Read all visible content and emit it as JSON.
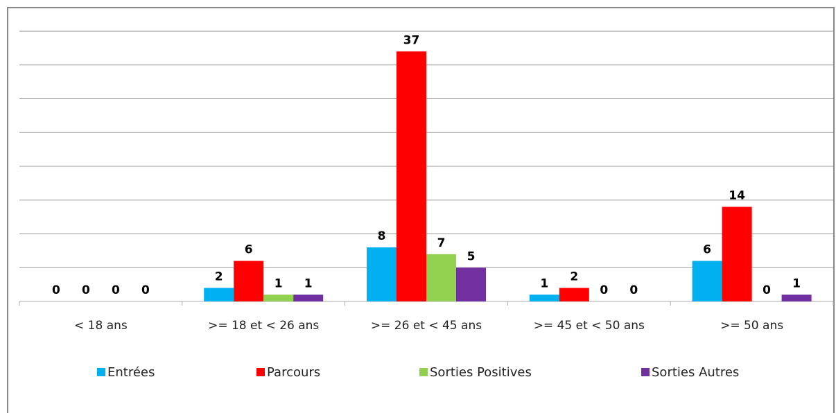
{
  "chart_data": {
    "type": "bar",
    "categories": [
      "< 18 ans",
      ">= 18 et < 26 ans",
      ">= 26 et < 45 ans",
      ">= 45 et < 50 ans",
      ">= 50 ans"
    ],
    "series": [
      {
        "name": "Entrées",
        "color": "#00b0f0",
        "values": [
          0,
          2,
          8,
          1,
          6
        ]
      },
      {
        "name": "Parcours",
        "color": "#ff0000",
        "values": [
          0,
          6,
          37,
          2,
          14
        ]
      },
      {
        "name": "Sorties Positives",
        "color": "#92d050",
        "values": [
          0,
          1,
          7,
          0,
          0
        ]
      },
      {
        "name": "Sorties Autres",
        "color": "#7030a0",
        "values": [
          0,
          1,
          5,
          0,
          1
        ]
      }
    ],
    "ylim": [
      0,
      40
    ],
    "yticks": [
      0,
      5,
      10,
      15,
      20,
      25,
      30,
      35,
      40
    ],
    "grid": true,
    "legend": "bottom"
  }
}
